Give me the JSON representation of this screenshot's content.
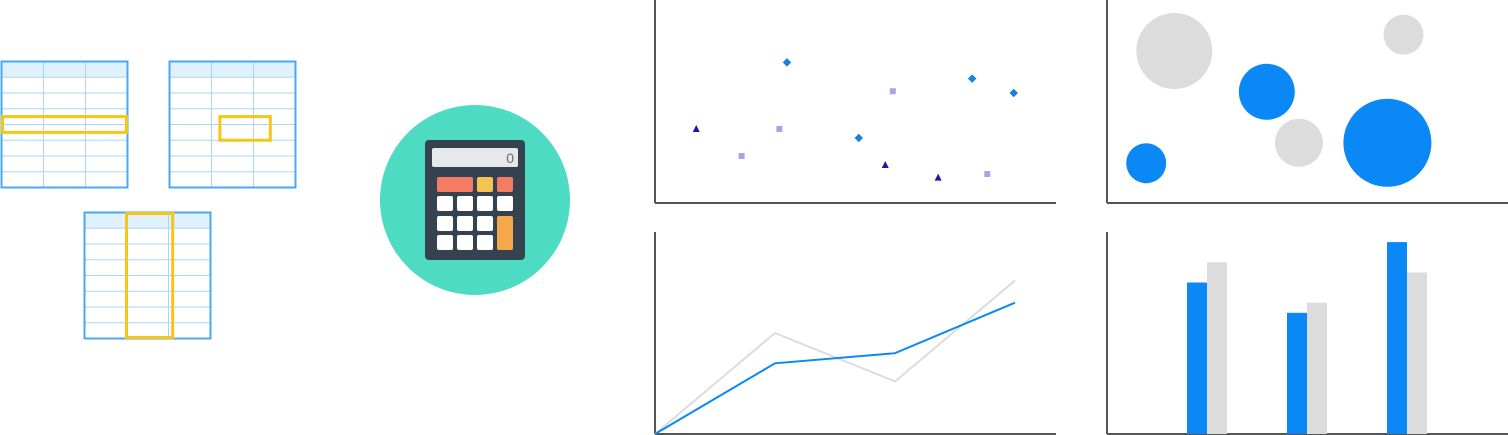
{
  "colors": {
    "grid_border": "#4aa8f0",
    "grid_line": "#a9d6f7",
    "grid_header": "#dff1fd",
    "selection": "#f5c518",
    "calc_circle": "#4ddbc4",
    "calc_body": "#35424f",
    "calc_screen": "#e6e8ea",
    "key_white": "#ffffff",
    "key_red": "#f47b65",
    "key_yellow": "#f6c453",
    "key_orange": "#f5a84a",
    "axis": "#555555",
    "blue": "#0a88f5",
    "grey": "#dcdcdc",
    "scatter_diamond": "#1a7fe0",
    "scatter_square": "#a6a6e6",
    "scatter_triangle": "#1a1aa0"
  },
  "icons": {
    "row_selection": "spreadsheet-row-selection-icon",
    "cell_selection": "spreadsheet-cell-selection-icon",
    "column_selection": "spreadsheet-column-selection-icon",
    "calculator": "calculator-icon"
  },
  "calculator": {
    "display": "0"
  },
  "chart_data": [
    {
      "type": "scatter",
      "title": "",
      "xlim": [
        0,
        100
      ],
      "ylim": [
        0,
        100
      ],
      "grid": false,
      "series": [
        {
          "marker": "diamond",
          "x": [
            32,
            51,
            81,
            92
          ],
          "y": [
            72,
            30,
            63,
            55
          ]
        },
        {
          "marker": "square",
          "x": [
            20,
            30,
            60,
            85
          ],
          "y": [
            20,
            35,
            56,
            10
          ]
        },
        {
          "marker": "triangle",
          "x": [
            8,
            58,
            72
          ],
          "y": [
            35,
            15,
            8
          ]
        }
      ]
    },
    {
      "type": "bubble",
      "title": "",
      "xlim": [
        0,
        100
      ],
      "ylim": [
        0,
        100
      ],
      "grid": false,
      "series": [
        {
          "color": "blue",
          "x": [
            10,
            40,
            70
          ],
          "y": [
            20,
            55,
            30
          ],
          "size": [
            20,
            28,
            44
          ]
        },
        {
          "color": "grey",
          "x": [
            17,
            48,
            74
          ],
          "y": [
            75,
            30,
            83
          ],
          "size": [
            38,
            24,
            20
          ]
        }
      ]
    },
    {
      "type": "line",
      "title": "",
      "xlim": [
        0,
        90
      ],
      "ylim": [
        0,
        100
      ],
      "grid": false,
      "series": [
        {
          "color": "blue",
          "x": [
            0,
            30,
            60,
            90
          ],
          "y": [
            0,
            35,
            40,
            65
          ]
        },
        {
          "color": "grey",
          "x": [
            0,
            30,
            60,
            90
          ],
          "y": [
            0,
            50,
            26,
            76
          ]
        }
      ]
    },
    {
      "type": "bar",
      "title": "",
      "categories": [
        "",
        "",
        ""
      ],
      "ylim": [
        0,
        100
      ],
      "grid": false,
      "series": [
        {
          "color": "blue",
          "values": [
            75,
            60,
            95
          ]
        },
        {
          "color": "grey",
          "values": [
            85,
            65,
            80
          ]
        }
      ]
    }
  ]
}
